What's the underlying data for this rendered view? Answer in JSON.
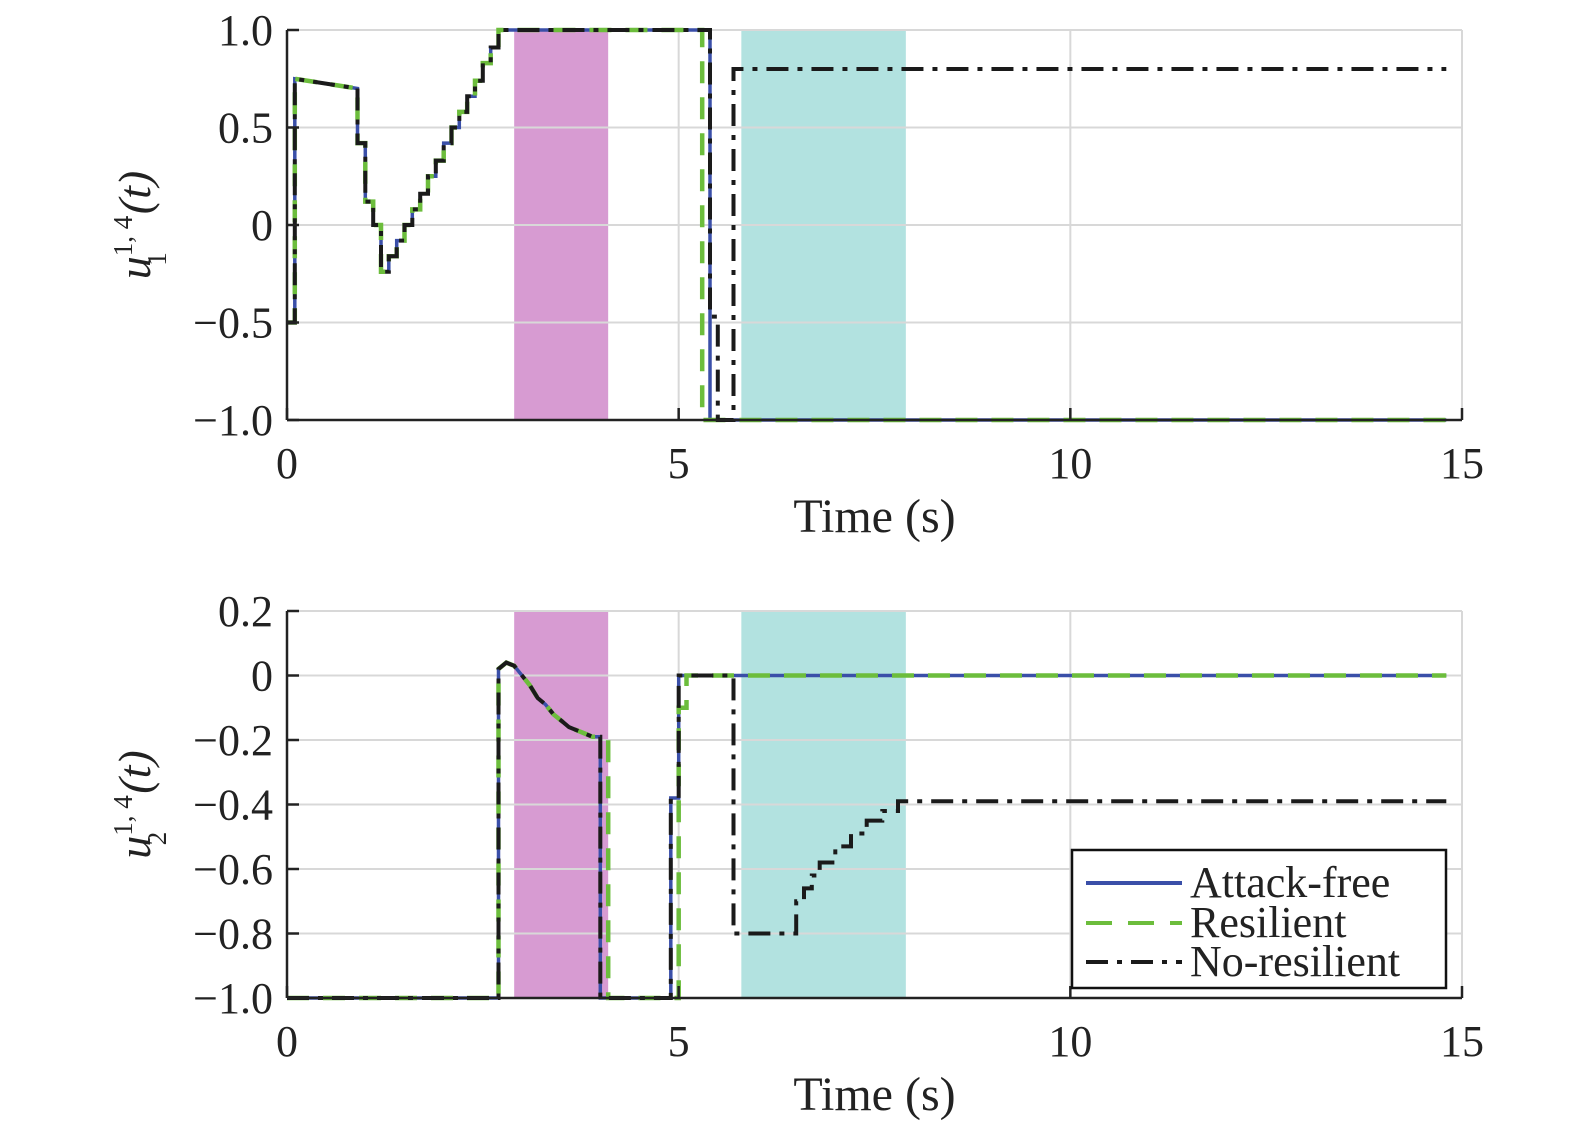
{
  "colors": {
    "attack_free": "#3a4fa8",
    "resilient": "#6cbd3c",
    "no_resilient": "#1a1a1a",
    "shade_1": "#d79bd2",
    "shade_2": "#b2e2e0",
    "grid": "#d8d8d8",
    "axis": "#222222"
  },
  "legend": {
    "attack_free": "Attack-free",
    "resilient": "Resilient",
    "no_resilient": "No-resilient",
    "placement": "lower-right of bottom panel"
  },
  "chart_data": [
    {
      "type": "line",
      "xlabel": "Time (s)",
      "ylabel": {
        "base": "u",
        "sub": "1",
        "sup": "1, 4",
        "arg": "(t)"
      },
      "xlim": [
        0,
        15
      ],
      "ylim": [
        -1.0,
        1.0
      ],
      "xticks": [
        0,
        5,
        10,
        15
      ],
      "xtick_labels": [
        "0",
        "5",
        "10",
        "15"
      ],
      "yticks": [
        -1.0,
        -0.5,
        0,
        0.5,
        1.0
      ],
      "ytick_labels": [
        "−1.0",
        "−0.5",
        "0",
        "0.5",
        "1.0"
      ],
      "grid": true,
      "shaded_regions": [
        {
          "x": [
            2.9,
            4.1
          ],
          "color": "shade_1"
        },
        {
          "x": [
            5.8,
            7.9
          ],
          "color": "shade_2"
        }
      ],
      "series": [
        {
          "name": "Attack-free",
          "style": "solid",
          "points": [
            [
              0,
              -0.5
            ],
            [
              0.1,
              -0.5
            ],
            [
              0.1,
              0.75
            ],
            [
              0.9,
              0.7
            ],
            [
              0.9,
              0.42
            ],
            [
              1.0,
              0.42
            ],
            [
              1.0,
              0.12
            ],
            [
              1.1,
              0.12
            ],
            [
              1.1,
              0.0
            ],
            [
              1.2,
              0.0
            ],
            [
              1.2,
              -0.24
            ],
            [
              1.3,
              -0.24
            ],
            [
              1.3,
              -0.16
            ],
            [
              1.4,
              -0.16
            ],
            [
              1.4,
              -0.08
            ],
            [
              1.5,
              -0.08
            ],
            [
              1.5,
              0.0
            ],
            [
              1.6,
              0.0
            ],
            [
              1.6,
              0.08
            ],
            [
              1.7,
              0.08
            ],
            [
              1.7,
              0.16
            ],
            [
              1.8,
              0.16
            ],
            [
              1.8,
              0.25
            ],
            [
              1.9,
              0.25
            ],
            [
              1.9,
              0.33
            ],
            [
              2.0,
              0.33
            ],
            [
              2.0,
              0.42
            ],
            [
              2.1,
              0.42
            ],
            [
              2.1,
              0.5
            ],
            [
              2.2,
              0.5
            ],
            [
              2.2,
              0.58
            ],
            [
              2.3,
              0.58
            ],
            [
              2.3,
              0.66
            ],
            [
              2.4,
              0.66
            ],
            [
              2.4,
              0.74
            ],
            [
              2.5,
              0.74
            ],
            [
              2.5,
              0.83
            ],
            [
              2.6,
              0.83
            ],
            [
              2.6,
              0.91
            ],
            [
              2.7,
              0.91
            ],
            [
              2.7,
              1.0
            ],
            [
              5.4,
              1.0
            ],
            [
              5.4,
              0.55
            ],
            [
              5.4,
              -1.0
            ],
            [
              14.8,
              -1.0
            ]
          ]
        },
        {
          "name": "Resilient",
          "style": "dashed",
          "points": [
            [
              0,
              -0.5
            ],
            [
              0.1,
              -0.5
            ],
            [
              0.1,
              0.75
            ],
            [
              0.9,
              0.7
            ],
            [
              0.9,
              0.42
            ],
            [
              1.0,
              0.42
            ],
            [
              1.0,
              0.12
            ],
            [
              1.1,
              0.12
            ],
            [
              1.1,
              0.0
            ],
            [
              1.2,
              0.0
            ],
            [
              1.2,
              -0.24
            ],
            [
              1.3,
              -0.24
            ],
            [
              1.3,
              -0.16
            ],
            [
              1.4,
              -0.16
            ],
            [
              1.4,
              -0.08
            ],
            [
              1.5,
              -0.08
            ],
            [
              1.5,
              0.0
            ],
            [
              1.6,
              0.0
            ],
            [
              1.6,
              0.08
            ],
            [
              1.7,
              0.08
            ],
            [
              1.7,
              0.16
            ],
            [
              1.8,
              0.16
            ],
            [
              1.8,
              0.25
            ],
            [
              1.9,
              0.25
            ],
            [
              1.9,
              0.33
            ],
            [
              2.0,
              0.33
            ],
            [
              2.0,
              0.42
            ],
            [
              2.1,
              0.42
            ],
            [
              2.1,
              0.5
            ],
            [
              2.2,
              0.5
            ],
            [
              2.2,
              0.58
            ],
            [
              2.3,
              0.58
            ],
            [
              2.3,
              0.66
            ],
            [
              2.4,
              0.66
            ],
            [
              2.4,
              0.74
            ],
            [
              2.5,
              0.74
            ],
            [
              2.5,
              0.83
            ],
            [
              2.6,
              0.83
            ],
            [
              2.6,
              0.91
            ],
            [
              2.7,
              0.91
            ],
            [
              2.7,
              1.0
            ],
            [
              5.3,
              1.0
            ],
            [
              5.3,
              -1.0
            ],
            [
              14.8,
              -1.0
            ]
          ]
        },
        {
          "name": "No-resilient",
          "style": "dashdot",
          "points": [
            [
              0,
              -0.5
            ],
            [
              0.1,
              -0.5
            ],
            [
              0.1,
              0.75
            ],
            [
              0.9,
              0.7
            ],
            [
              0.9,
              0.42
            ],
            [
              1.0,
              0.42
            ],
            [
              1.0,
              0.12
            ],
            [
              1.1,
              0.12
            ],
            [
              1.1,
              0.0
            ],
            [
              1.2,
              0.0
            ],
            [
              1.2,
              -0.24
            ],
            [
              1.3,
              -0.24
            ],
            [
              1.3,
              -0.16
            ],
            [
              1.4,
              -0.16
            ],
            [
              1.4,
              -0.08
            ],
            [
              1.5,
              -0.08
            ],
            [
              1.5,
              0.0
            ],
            [
              1.6,
              0.0
            ],
            [
              1.6,
              0.08
            ],
            [
              1.7,
              0.08
            ],
            [
              1.7,
              0.16
            ],
            [
              1.8,
              0.16
            ],
            [
              1.8,
              0.25
            ],
            [
              1.9,
              0.25
            ],
            [
              1.9,
              0.33
            ],
            [
              2.0,
              0.33
            ],
            [
              2.0,
              0.42
            ],
            [
              2.1,
              0.42
            ],
            [
              2.1,
              0.5
            ],
            [
              2.2,
              0.5
            ],
            [
              2.2,
              0.58
            ],
            [
              2.3,
              0.58
            ],
            [
              2.3,
              0.66
            ],
            [
              2.4,
              0.66
            ],
            [
              2.4,
              0.74
            ],
            [
              2.5,
              0.74
            ],
            [
              2.5,
              0.83
            ],
            [
              2.6,
              0.83
            ],
            [
              2.6,
              0.91
            ],
            [
              2.7,
              0.91
            ],
            [
              2.7,
              1.0
            ],
            [
              5.4,
              1.0
            ],
            [
              5.4,
              -0.47
            ],
            [
              5.5,
              -0.47
            ],
            [
              5.5,
              -1.0
            ],
            [
              5.7,
              -1.0
            ],
            [
              5.7,
              0.8
            ],
            [
              14.8,
              0.8
            ]
          ]
        }
      ]
    },
    {
      "type": "line",
      "xlabel": "Time (s)",
      "ylabel": {
        "base": "u",
        "sub": "2",
        "sup": "1, 4",
        "arg": "(t)"
      },
      "xlim": [
        0,
        15
      ],
      "ylim": [
        -1.0,
        0.2
      ],
      "xticks": [
        0,
        5,
        10,
        15
      ],
      "xtick_labels": [
        "0",
        "5",
        "10",
        "15"
      ],
      "yticks": [
        -1.0,
        -0.8,
        -0.6,
        -0.4,
        -0.2,
        0,
        0.2
      ],
      "ytick_labels": [
        "−1.0",
        "−0.8",
        "−0.6",
        "−0.4",
        "−0.2",
        "0",
        "0.2"
      ],
      "grid": true,
      "shaded_regions": [
        {
          "x": [
            2.9,
            4.1
          ],
          "color": "shade_1"
        },
        {
          "x": [
            5.8,
            7.9
          ],
          "color": "shade_2"
        }
      ],
      "series": [
        {
          "name": "Attack-free",
          "style": "solid",
          "points": [
            [
              0,
              -1.0
            ],
            [
              2.7,
              -1.0
            ],
            [
              2.7,
              0.02
            ],
            [
              2.8,
              0.04
            ],
            [
              2.9,
              0.03
            ],
            [
              3.0,
              0.0
            ],
            [
              3.1,
              -0.03
            ],
            [
              3.2,
              -0.07
            ],
            [
              3.3,
              -0.09
            ],
            [
              3.4,
              -0.12
            ],
            [
              3.5,
              -0.14
            ],
            [
              3.6,
              -0.16
            ],
            [
              3.7,
              -0.17
            ],
            [
              3.8,
              -0.18
            ],
            [
              3.9,
              -0.19
            ],
            [
              4.0,
              -0.19
            ],
            [
              4.0,
              -1.0
            ],
            [
              4.9,
              -1.0
            ],
            [
              4.9,
              -0.38
            ],
            [
              5.0,
              -0.38
            ],
            [
              5.0,
              0.0
            ],
            [
              14.8,
              0.0
            ]
          ]
        },
        {
          "name": "Resilient",
          "style": "dashed",
          "points": [
            [
              0,
              -1.0
            ],
            [
              2.7,
              -1.0
            ],
            [
              2.7,
              0.02
            ],
            [
              2.8,
              0.04
            ],
            [
              2.9,
              0.03
            ],
            [
              3.0,
              0.0
            ],
            [
              3.1,
              -0.03
            ],
            [
              3.2,
              -0.07
            ],
            [
              3.3,
              -0.09
            ],
            [
              3.4,
              -0.12
            ],
            [
              3.5,
              -0.14
            ],
            [
              3.6,
              -0.16
            ],
            [
              3.7,
              -0.17
            ],
            [
              3.8,
              -0.18
            ],
            [
              3.9,
              -0.19
            ],
            [
              4.0,
              -0.19
            ],
            [
              4.1,
              -0.2
            ],
            [
              4.1,
              -1.0
            ],
            [
              5.0,
              -1.0
            ],
            [
              5.0,
              -0.1
            ],
            [
              5.1,
              -0.1
            ],
            [
              5.1,
              0.0
            ],
            [
              14.8,
              0.0
            ]
          ]
        },
        {
          "name": "No-resilient",
          "style": "dashdot",
          "points": [
            [
              0,
              -1.0
            ],
            [
              2.7,
              -1.0
            ],
            [
              2.7,
              0.02
            ],
            [
              2.8,
              0.04
            ],
            [
              2.9,
              0.03
            ],
            [
              3.0,
              0.0
            ],
            [
              3.1,
              -0.03
            ],
            [
              3.2,
              -0.07
            ],
            [
              3.3,
              -0.09
            ],
            [
              3.4,
              -0.12
            ],
            [
              3.5,
              -0.14
            ],
            [
              3.6,
              -0.16
            ],
            [
              3.7,
              -0.17
            ],
            [
              3.8,
              -0.18
            ],
            [
              3.9,
              -0.19
            ],
            [
              4.0,
              -0.19
            ],
            [
              4.0,
              -1.0
            ],
            [
              4.9,
              -1.0
            ],
            [
              4.9,
              -0.38
            ],
            [
              5.0,
              -0.38
            ],
            [
              5.0,
              0.0
            ],
            [
              5.7,
              0.0
            ],
            [
              5.7,
              -0.8
            ],
            [
              6.5,
              -0.8
            ],
            [
              6.5,
              -0.7
            ],
            [
              6.6,
              -0.7
            ],
            [
              6.6,
              -0.66
            ],
            [
              6.7,
              -0.66
            ],
            [
              6.7,
              -0.62
            ],
            [
              6.8,
              -0.62
            ],
            [
              6.8,
              -0.58
            ],
            [
              7.0,
              -0.58
            ],
            [
              7.0,
              -0.53
            ],
            [
              7.2,
              -0.53
            ],
            [
              7.2,
              -0.49
            ],
            [
              7.4,
              -0.49
            ],
            [
              7.4,
              -0.45
            ],
            [
              7.6,
              -0.45
            ],
            [
              7.6,
              -0.42
            ],
            [
              7.8,
              -0.42
            ],
            [
              7.8,
              -0.39
            ],
            [
              14.8,
              -0.39
            ]
          ]
        }
      ]
    }
  ]
}
